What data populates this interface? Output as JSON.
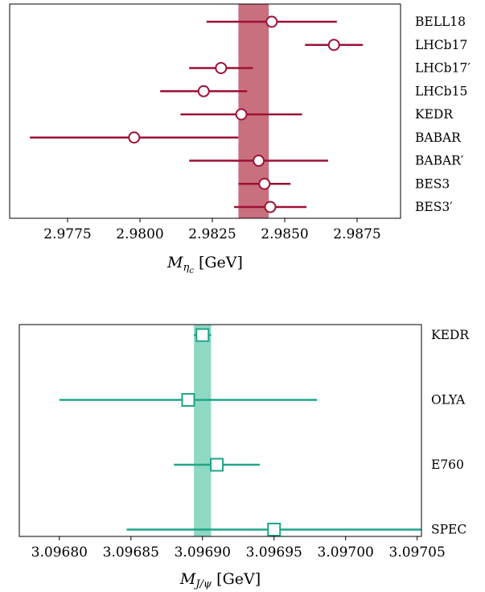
{
  "chart_data": [
    {
      "type": "errorbar",
      "xlabel": "M_{η_c} [GeV]",
      "xlabel_main": "M",
      "xlabel_sub": "η",
      "xlabel_subsub": "c",
      "xlabel_unit": "[GeV]",
      "xlim": [
        2.9755,
        2.989
      ],
      "xticks": [
        2.9775,
        2.98,
        2.9825,
        2.985,
        2.9875
      ],
      "xtick_labels": [
        "2.9775",
        "2.9800",
        "2.9825",
        "2.9850",
        "2.9875"
      ],
      "band": {
        "min": 2.9834,
        "max": 2.98445,
        "color": "#c9707e"
      },
      "color": "#9e1035",
      "marker": "circle",
      "legend_position": "right-labels",
      "points": [
        {
          "label": "BELL18",
          "value": 2.98455,
          "err_low": 0.00225,
          "err_high": 0.00225
        },
        {
          "label": "LHCb17",
          "value": 2.9867,
          "err_low": 0.001,
          "err_high": 0.001
        },
        {
          "label": "LHCb17′",
          "value": 2.9828,
          "err_low": 0.0011,
          "err_high": 0.0011
        },
        {
          "label": "LHCb15",
          "value": 2.9822,
          "err_low": 0.0015,
          "err_high": 0.0015
        },
        {
          "label": "KEDR",
          "value": 2.9835,
          "err_low": 0.0021,
          "err_high": 0.0021
        },
        {
          "label": "BABAR",
          "value": 2.9798,
          "err_low": 0.0036,
          "err_high": 0.0036
        },
        {
          "label": "BABAR′",
          "value": 2.9841,
          "err_low": 0.0024,
          "err_high": 0.0024
        },
        {
          "label": "BES3",
          "value": 2.9843,
          "err_low": 0.0009,
          "err_high": 0.0009
        },
        {
          "label": "BES3′",
          "value": 2.9845,
          "err_low": 0.00125,
          "err_high": 0.00125
        }
      ]
    },
    {
      "type": "errorbar",
      "xlabel": "M_{J/ψ} [GeV]",
      "xlabel_main": "M",
      "xlabel_sub": "J/ψ",
      "xlabel_unit": "[GeV]",
      "xlim": [
        3.096772,
        3.097053
      ],
      "xticks": [
        3.0968,
        3.09685,
        3.0969,
        3.09695,
        3.097,
        3.09705
      ],
      "xtick_labels": [
        "3.09680",
        "3.09685",
        "3.09690",
        "3.09695",
        "3.09700",
        "3.09705"
      ],
      "band": {
        "min": 3.096894,
        "max": 3.096906,
        "color": "#8fd8c4"
      },
      "color": "#1fa58a",
      "marker": "square",
      "legend_position": "right-labels",
      "points": [
        {
          "label": "KEDR",
          "value": 3.0969,
          "err_low": 6e-06,
          "err_high": 6e-06
        },
        {
          "label": "OLYA",
          "value": 3.09689,
          "err_low": 9e-05,
          "err_high": 9e-05
        },
        {
          "label": "E760",
          "value": 3.09691,
          "err_low": 3e-05,
          "err_high": 3e-05
        },
        {
          "label": "SPEC",
          "value": 3.09695,
          "err_low": 0.000103,
          "err_high": 0.000103
        }
      ]
    }
  ]
}
